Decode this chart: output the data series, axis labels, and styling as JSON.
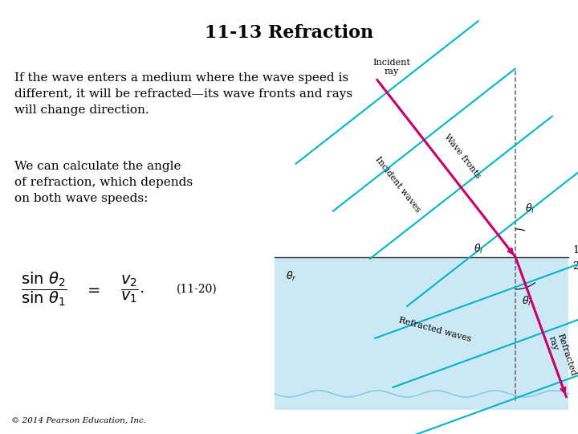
{
  "title": "11-13 Refraction",
  "title_fontsize": 16,
  "bg_color": "#ffffff",
  "text_color": "#000000",
  "paragraph1_line1": "If the wave enters a medium where the wave speed is",
  "paragraph1_line2": "different, it will be refracted—its wave fronts and rays",
  "paragraph1_line3": "will change direction.",
  "paragraph2_line1": "We can calculate the angle",
  "paragraph2_line2": "of refraction, which depends",
  "paragraph2_line3": "on both wave speeds:",
  "footer": "© 2014 Pearson Education, Inc.",
  "wave_color": "#00b5cc",
  "ray_color": "#cc006a",
  "dash_color": "#666666",
  "lower_bg": "#cce8f5",
  "boundary_color": "#333333"
}
